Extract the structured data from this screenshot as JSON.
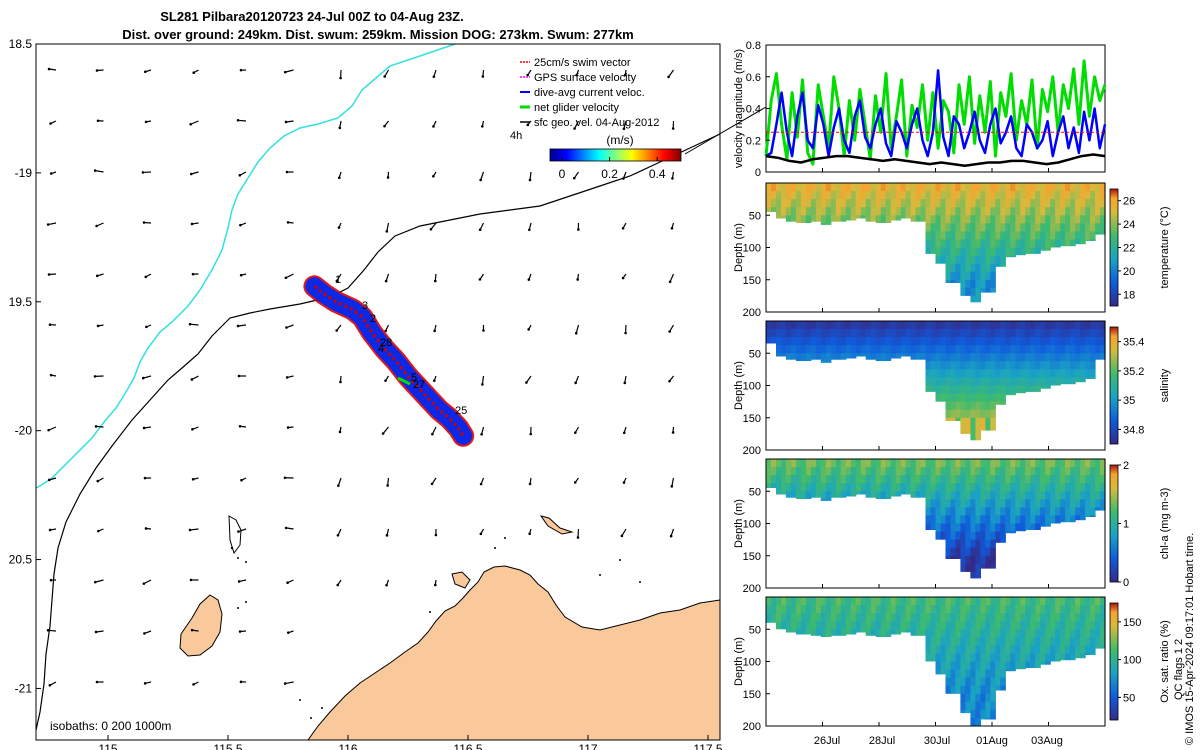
{
  "title": {
    "line1": "SL281 Pilbara20120723 24-Jul 00Z to 04-Aug 23Z.",
    "line2": "Dist. over ground: 249km. Dist. swum: 259km. Mission DOG: 273km. Swum: 277km"
  },
  "colors": {
    "swim_vector": "#ff0000",
    "gps_velocity": "#ff00ff",
    "dive_avg": "#0000ff",
    "net_glider": "#00dd00",
    "sfc_geo": "#000000",
    "coast_fill": "#f9c89b",
    "isobath_shallow": "#33e0e0",
    "isobath_deep": "#000000",
    "track": "#0a28e6",
    "track_outline": "#e00000"
  },
  "chart_data": [
    {
      "type": "map",
      "name": "glider-track-map",
      "xlim": [
        114.7,
        117.55
      ],
      "ylim": [
        -21.2,
        -18.5
      ],
      "x_ticks": [
        115,
        115.5,
        116,
        116.5,
        117,
        117.5
      ],
      "x_tick_labels": [
        "115",
        "115.5",
        "116",
        "116.5",
        "117",
        "117.5"
      ],
      "y_ticks": [
        -18.5,
        -19,
        -19.5,
        -20,
        -20.5,
        -21
      ],
      "y_tick_labels": [
        "18.5",
        "-19",
        "19.5",
        "-20",
        "20.5",
        "-21"
      ],
      "legend": [
        {
          "label": "25cm/s swim vector",
          "color": "#ff0000"
        },
        {
          "label": "GPS surface velocity",
          "color": "#ff00ff"
        },
        {
          "label": "dive-avg current veloc.",
          "color": "#0000ff"
        },
        {
          "label": "net glider velocity",
          "color": "#00dd00"
        },
        {
          "label": "sfc geo. vel. 04-Aug-2012",
          "color": "#000000"
        }
      ],
      "legend_note": "4h",
      "colorbar": {
        "label": "(m/s)",
        "ticks": [
          0,
          0.2,
          0.4
        ],
        "tick_labels": [
          "0",
          "0.2",
          "0.4"
        ],
        "range": [
          -0.05,
          0.5
        ]
      },
      "isobaths_label": "isobaths: 0   200  1000m",
      "track_labels": [
        "1",
        "3",
        "2",
        "28",
        "4",
        "5",
        "27",
        "25"
      ],
      "track": [
        [
          115.86,
          -19.44
        ],
        [
          115.9,
          -19.47
        ],
        [
          115.95,
          -19.5
        ],
        [
          116.02,
          -19.53
        ],
        [
          116.06,
          -19.56
        ],
        [
          116.1,
          -19.62
        ],
        [
          116.15,
          -19.68
        ],
        [
          116.2,
          -19.73
        ],
        [
          116.25,
          -19.79
        ],
        [
          116.3,
          -19.84
        ],
        [
          116.34,
          -19.88
        ],
        [
          116.38,
          -19.92
        ],
        [
          116.42,
          -19.95
        ],
        [
          116.46,
          -19.99
        ],
        [
          116.48,
          -20.02
        ]
      ],
      "track_thickness": "broad"
    },
    {
      "type": "line",
      "name": "velocity-timeseries",
      "ylabel": "velocity magnitude (m/s)",
      "ylim": [
        0,
        0.8
      ],
      "y_ticks": [
        0,
        0.2,
        0.4,
        0.6,
        0.8
      ],
      "y_tick_labels": [
        "0",
        "0.2",
        "0.4",
        "0.6",
        "0.8"
      ],
      "x_range_days": [
        0,
        12
      ],
      "series": [
        {
          "color": "#00dd00",
          "width": 3,
          "values": [
            0.1,
            0.45,
            0.62,
            0.3,
            0.08,
            0.5,
            0.22,
            0.58,
            0.12,
            0.05,
            0.55,
            0.35,
            0.15,
            0.6,
            0.4,
            0.1,
            0.45,
            0.2,
            0.52,
            0.3,
            0.08,
            0.48,
            0.25,
            0.62,
            0.15,
            0.35,
            0.58,
            0.1,
            0.42,
            0.28,
            0.55,
            0.2,
            0.5,
            0.15,
            0.45,
            0.38,
            0.12,
            0.55,
            0.3,
            0.6,
            0.18,
            0.48,
            0.25,
            0.57,
            0.1,
            0.5,
            0.35,
            0.62,
            0.2,
            0.45,
            0.3,
            0.58,
            0.15,
            0.52,
            0.38,
            0.6,
            0.25,
            0.55,
            0.4,
            0.65,
            0.3,
            0.7,
            0.35,
            0.6,
            0.45,
            0.55
          ]
        },
        {
          "color": "#0000ff",
          "width": 2.5,
          "values": [
            0.1,
            0.12,
            0.3,
            0.5,
            0.25,
            0.1,
            0.35,
            0.5,
            0.2,
            0.15,
            0.42,
            0.3,
            0.1,
            0.28,
            0.4,
            0.2,
            0.12,
            0.35,
            0.45,
            0.22,
            0.15,
            0.3,
            0.4,
            0.18,
            0.1,
            0.32,
            0.25,
            0.15,
            0.3,
            0.4,
            0.2,
            0.1,
            0.25,
            0.64,
            0.22,
            0.1,
            0.35,
            0.3,
            0.15,
            0.25,
            0.38,
            0.2,
            0.12,
            0.3,
            0.4,
            0.18,
            0.25,
            0.35,
            0.15,
            0.1,
            0.3,
            0.25,
            0.15,
            0.2,
            0.32,
            0.1,
            0.25,
            0.35,
            0.15,
            0.28,
            0.12,
            0.38,
            0.2,
            0.4,
            0.15,
            0.3
          ]
        },
        {
          "color": "#ff0000",
          "style": "dashed",
          "width": 1,
          "values": [
            0.25,
            0.25,
            0.25,
            0.25,
            0.25,
            0.25,
            0.25,
            0.25,
            0.25,
            0.25,
            0.25,
            0.25
          ]
        },
        {
          "color": "#000000",
          "width": 2.5,
          "values": [
            0.1,
            0.09,
            0.07,
            0.06,
            0.08,
            0.09,
            0.1,
            0.1,
            0.09,
            0.08,
            0.07,
            0.08,
            0.07,
            0.06,
            0.05,
            0.06,
            0.05,
            0.04,
            0.05,
            0.06,
            0.06,
            0.07,
            0.07,
            0.06,
            0.05,
            0.06,
            0.08,
            0.1,
            0.11,
            0.1
          ]
        }
      ]
    },
    {
      "type": "heatmap",
      "name": "temperature-section",
      "ylabel": "Depth (m)",
      "clabel": "temperature (°C)",
      "y_ticks": [
        50,
        100,
        150,
        200
      ],
      "y_tick_labels": [
        "50",
        "100",
        "150",
        "200"
      ],
      "c_ticks": [
        18,
        20,
        22,
        24,
        26
      ],
      "c_tick_labels": [
        "18",
        "20",
        "22",
        "24",
        "26"
      ],
      "clim": [
        17,
        27
      ],
      "bottom_profile_m": [
        45,
        55,
        60,
        62,
        60,
        65,
        60,
        58,
        55,
        60,
        62,
        58,
        55,
        60,
        110,
        125,
        155,
        175,
        185,
        170,
        130,
        115,
        112,
        110,
        105,
        100,
        98,
        95,
        90,
        80
      ],
      "surface_value": 25.5,
      "deep_value": 20.5
    },
    {
      "type": "heatmap",
      "name": "salinity-section",
      "ylabel": "Depth (m)",
      "clabel": "salinity",
      "y_ticks": [
        50,
        100,
        150,
        200
      ],
      "y_tick_labels": [
        "50",
        "100",
        "150",
        "200"
      ],
      "c_ticks": [
        34.8,
        35,
        35.2,
        35.4
      ],
      "c_tick_labels": [
        "34.8",
        "35",
        "35.2",
        "35.4"
      ],
      "clim": [
        34.7,
        35.5
      ],
      "bottom_profile_m": [
        35,
        55,
        60,
        62,
        60,
        65,
        60,
        58,
        55,
        60,
        62,
        58,
        55,
        60,
        110,
        125,
        155,
        175,
        185,
        170,
        130,
        115,
        112,
        110,
        105,
        100,
        98,
        95,
        90,
        60
      ],
      "surface_value": 34.75,
      "deep_value": 35.3
    },
    {
      "type": "heatmap",
      "name": "chlorophyll-section",
      "ylabel": "Depth (m)",
      "clabel": "chl-a (mg m-3)",
      "y_ticks": [
        50,
        100,
        150,
        200
      ],
      "y_tick_labels": [
        "50",
        "100",
        "150",
        "200"
      ],
      "c_ticks": [
        0,
        1,
        2
      ],
      "c_tick_labels": [
        "0",
        "1",
        "2"
      ],
      "clim": [
        0,
        2
      ],
      "bottom_profile_m": [
        45,
        55,
        60,
        62,
        60,
        65,
        60,
        58,
        55,
        60,
        62,
        58,
        55,
        60,
        110,
        125,
        155,
        175,
        185,
        170,
        130,
        115,
        112,
        110,
        105,
        100,
        98,
        95,
        90,
        80
      ],
      "surface_value": 1.3,
      "deep_value": 0.1
    },
    {
      "type": "heatmap",
      "name": "oxygen-section",
      "ylabel": "Depth (m)",
      "clabel": "Ox. sat. ratio (%)",
      "y_ticks": [
        50,
        100,
        150,
        200
      ],
      "y_tick_labels": [
        "50",
        "100",
        "150",
        "200"
      ],
      "c_ticks": [
        50,
        100,
        150
      ],
      "c_tick_labels": [
        "50",
        "100",
        "150"
      ],
      "clim": [
        20,
        175
      ],
      "bottom_profile_m": [
        40,
        50,
        55,
        58,
        60,
        62,
        60,
        58,
        55,
        60,
        62,
        58,
        55,
        60,
        100,
        120,
        150,
        180,
        200,
        190,
        145,
        115,
        112,
        110,
        105,
        100,
        98,
        95,
        90,
        80
      ],
      "surface_value": 110,
      "deep_value": 70
    }
  ],
  "time_axis": {
    "tick_labels": [
      "26Jul",
      "28Jul",
      "30Jul",
      "01Aug",
      "03Aug"
    ],
    "tick_days": [
      2,
      4,
      6,
      8,
      10
    ]
  },
  "footer": {
    "qc": "QC flags 1  2",
    "stamp": "© IMOS 15-Apr-2024 09:17:01 Hobart time."
  }
}
